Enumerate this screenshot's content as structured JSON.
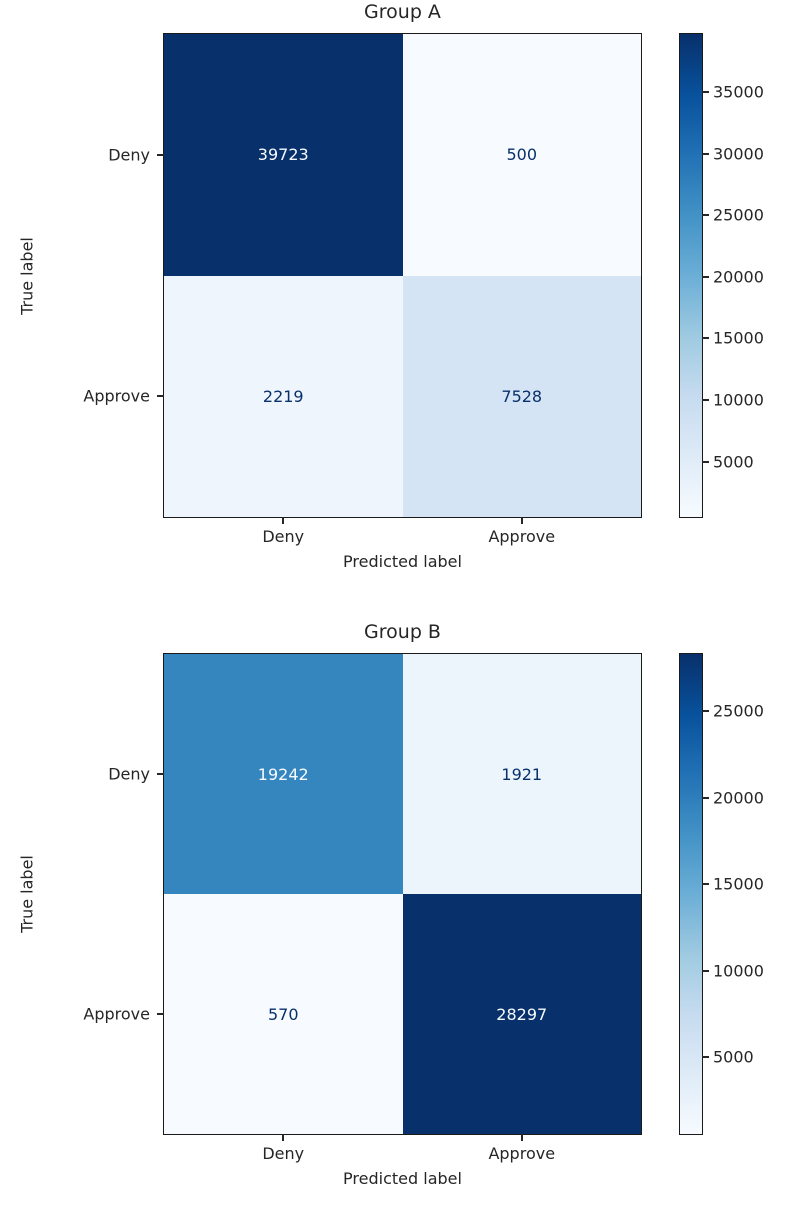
{
  "chart_data": [
    {
      "type": "heatmap",
      "title": "Group A",
      "xlabel": "Predicted label",
      "ylabel": "True label",
      "x_categories": [
        "Deny",
        "Approve"
      ],
      "y_categories": [
        "Deny",
        "Approve"
      ],
      "matrix": [
        [
          39723,
          500
        ],
        [
          2219,
          7528
        ]
      ],
      "vmin": 500,
      "vmax": 39723,
      "colorbar_ticks": [
        5000,
        10000,
        15000,
        20000,
        25000,
        30000,
        35000
      ],
      "colormap": "Blues",
      "legend_position": "right-colorbar",
      "grid": false
    },
    {
      "type": "heatmap",
      "title": "Group B",
      "xlabel": "Predicted label",
      "ylabel": "True label",
      "x_categories": [
        "Deny",
        "Approve"
      ],
      "y_categories": [
        "Deny",
        "Approve"
      ],
      "matrix": [
        [
          19242,
          1921
        ],
        [
          570,
          28297
        ]
      ],
      "vmin": 570,
      "vmax": 28297,
      "colorbar_ticks": [
        5000,
        10000,
        15000,
        20000,
        25000
      ],
      "colormap": "Blues",
      "legend_position": "right-colorbar",
      "grid": false
    }
  ],
  "style": {
    "background": "#ffffff",
    "text_color": "#262626",
    "spine_color": "#1a1a1a",
    "dark_cell_text": "#f7fbff",
    "light_cell_text": "#08306b",
    "colormap_stops": [
      "#f7fbff",
      "#deebf7",
      "#c6dbef",
      "#9ecae1",
      "#6baed6",
      "#4292c6",
      "#2171b5",
      "#08519c",
      "#08306b"
    ]
  }
}
